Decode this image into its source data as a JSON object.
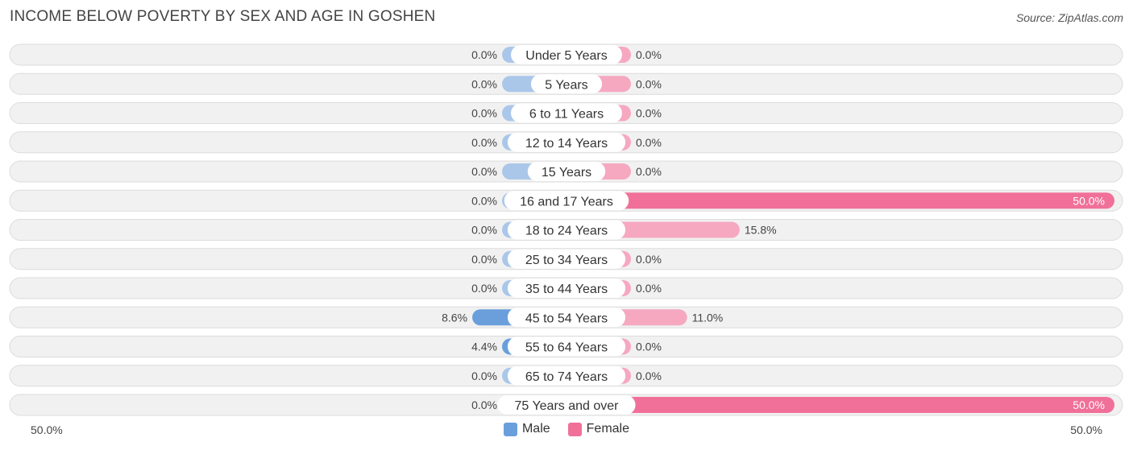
{
  "title": "INCOME BELOW POVERTY BY SEX AND AGE IN GOSHEN",
  "source": "Source: ZipAtlas.com",
  "colors": {
    "male": "#6a9fdc",
    "male_light": "#aac7ea",
    "female": "#f0709a",
    "female_light": "#f6a8c1"
  },
  "axis": {
    "left_label": "50.0%",
    "right_label": "50.0%"
  },
  "legend": {
    "male": "Male",
    "female": "Female"
  },
  "chart_data": {
    "type": "bar",
    "orientation": "horizontal-diverging",
    "title": "INCOME BELOW POVERTY BY SEX AND AGE IN GOSHEN",
    "xlim": [
      -50,
      50
    ],
    "categories": [
      "Under 5 Years",
      "5 Years",
      "6 to 11 Years",
      "12 to 14 Years",
      "15 Years",
      "16 and 17 Years",
      "18 to 24 Years",
      "25 to 34 Years",
      "35 to 44 Years",
      "45 to 54 Years",
      "55 to 64 Years",
      "65 to 74 Years",
      "75 Years and over"
    ],
    "series": [
      {
        "name": "Male",
        "values": [
          0.0,
          0.0,
          0.0,
          0.0,
          0.0,
          0.0,
          0.0,
          0.0,
          0.0,
          8.6,
          4.4,
          0.0,
          0.0
        ],
        "labels": [
          "0.0%",
          "0.0%",
          "0.0%",
          "0.0%",
          "0.0%",
          "0.0%",
          "0.0%",
          "0.0%",
          "0.0%",
          "8.6%",
          "4.4%",
          "0.0%",
          "0.0%"
        ]
      },
      {
        "name": "Female",
        "values": [
          0.0,
          0.0,
          0.0,
          0.0,
          0.0,
          50.0,
          15.8,
          0.0,
          0.0,
          11.0,
          0.0,
          0.0,
          50.0
        ],
        "labels": [
          "0.0%",
          "0.0%",
          "0.0%",
          "0.0%",
          "0.0%",
          "50.0%",
          "15.8%",
          "0.0%",
          "0.0%",
          "11.0%",
          "0.0%",
          "0.0%",
          "50.0%"
        ]
      }
    ],
    "legend_position": "bottom-center"
  }
}
